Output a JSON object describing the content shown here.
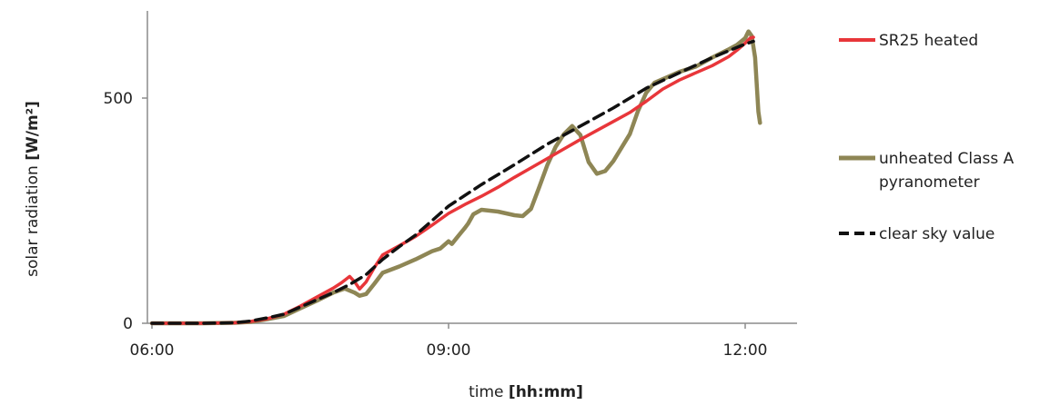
{
  "chart_data": {
    "type": "line",
    "xlabel": "time",
    "xlabel_unit": "[hh:mm]",
    "ylabel": "solar radiation",
    "ylabel_unit": "[W/m²]",
    "x_ticks": [
      "06:00",
      "09:00",
      "12:00"
    ],
    "y_ticks": [
      0,
      500
    ],
    "xlim": [
      "06:00",
      "12:35"
    ],
    "ylim": [
      0,
      700
    ],
    "grid": false,
    "legend_position": "right",
    "series": [
      {
        "name": "SR25 heated",
        "color": "#e8363a",
        "dash": "solid",
        "points": [
          [
            "06:00",
            0
          ],
          [
            "06:30",
            0
          ],
          [
            "06:50",
            1
          ],
          [
            "07:00",
            4
          ],
          [
            "07:10",
            10
          ],
          [
            "07:20",
            20
          ],
          [
            "07:30",
            38
          ],
          [
            "07:40",
            58
          ],
          [
            "07:50",
            78
          ],
          [
            "07:55",
            90
          ],
          [
            "08:00",
            104
          ],
          [
            "08:03",
            92
          ],
          [
            "08:06",
            76
          ],
          [
            "08:10",
            92
          ],
          [
            "08:15",
            124
          ],
          [
            "08:20",
            152
          ],
          [
            "08:30",
            172
          ],
          [
            "08:40",
            193
          ],
          [
            "08:50",
            218
          ],
          [
            "09:00",
            244
          ],
          [
            "09:10",
            264
          ],
          [
            "09:20",
            282
          ],
          [
            "09:30",
            302
          ],
          [
            "09:40",
            324
          ],
          [
            "09:50",
            345
          ],
          [
            "10:00",
            366
          ],
          [
            "10:10",
            387
          ],
          [
            "10:20",
            408
          ],
          [
            "10:30",
            428
          ],
          [
            "10:40",
            448
          ],
          [
            "10:50",
            468
          ],
          [
            "11:00",
            493
          ],
          [
            "11:10",
            520
          ],
          [
            "11:20",
            540
          ],
          [
            "11:30",
            556
          ],
          [
            "11:40",
            572
          ],
          [
            "11:50",
            592
          ],
          [
            "11:55",
            606
          ],
          [
            "12:00",
            622
          ],
          [
            "12:03",
            633
          ],
          [
            "12:05",
            635
          ]
        ]
      },
      {
        "name": "unheated Class A pyranometer",
        "color": "#8e8655",
        "dash": "solid",
        "points": [
          [
            "06:00",
            0
          ],
          [
            "06:30",
            0
          ],
          [
            "06:50",
            1
          ],
          [
            "07:00",
            3
          ],
          [
            "07:10",
            9
          ],
          [
            "07:20",
            16
          ],
          [
            "07:30",
            33
          ],
          [
            "07:40",
            50
          ],
          [
            "07:50",
            68
          ],
          [
            "07:57",
            77
          ],
          [
            "08:03",
            68
          ],
          [
            "08:06",
            61
          ],
          [
            "08:10",
            65
          ],
          [
            "08:15",
            88
          ],
          [
            "08:20",
            112
          ],
          [
            "08:30",
            126
          ],
          [
            "08:40",
            142
          ],
          [
            "08:50",
            160
          ],
          [
            "08:55",
            166
          ],
          [
            "09:00",
            182
          ],
          [
            "09:02",
            176
          ],
          [
            "09:05",
            190
          ],
          [
            "09:10",
            212
          ],
          [
            "09:12",
            222
          ],
          [
            "09:15",
            242
          ],
          [
            "09:20",
            252
          ],
          [
            "09:30",
            248
          ],
          [
            "09:40",
            240
          ],
          [
            "09:45",
            238
          ],
          [
            "09:50",
            254
          ],
          [
            "09:55",
            302
          ],
          [
            "10:00",
            352
          ],
          [
            "10:05",
            392
          ],
          [
            "10:10",
            420
          ],
          [
            "10:15",
            438
          ],
          [
            "10:20",
            418
          ],
          [
            "10:25",
            358
          ],
          [
            "10:30",
            332
          ],
          [
            "10:35",
            338
          ],
          [
            "10:40",
            360
          ],
          [
            "10:50",
            420
          ],
          [
            "10:55",
            472
          ],
          [
            "11:00",
            512
          ],
          [
            "11:05",
            534
          ],
          [
            "11:10",
            542
          ],
          [
            "11:20",
            558
          ],
          [
            "11:30",
            570
          ],
          [
            "11:40",
            590
          ],
          [
            "11:50",
            608
          ],
          [
            "11:55",
            618
          ],
          [
            "12:00",
            633
          ],
          [
            "12:02",
            648
          ],
          [
            "12:04",
            638
          ],
          [
            "12:06",
            590
          ],
          [
            "12:08",
            470
          ],
          [
            "12:09",
            445
          ]
        ]
      },
      {
        "name": "clear sky value",
        "color": "#111111",
        "dash": "dashed",
        "points": [
          [
            "06:00",
            0
          ],
          [
            "06:30",
            0
          ],
          [
            "06:50",
            1
          ],
          [
            "07:00",
            5
          ],
          [
            "07:10",
            12
          ],
          [
            "07:20",
            20
          ],
          [
            "07:30",
            36
          ],
          [
            "07:40",
            52
          ],
          [
            "07:50",
            68
          ],
          [
            "08:00",
            86
          ],
          [
            "08:10",
            108
          ],
          [
            "08:20",
            142
          ],
          [
            "08:30",
            170
          ],
          [
            "08:40",
            196
          ],
          [
            "08:50",
            228
          ],
          [
            "09:00",
            260
          ],
          [
            "09:20",
            308
          ],
          [
            "09:40",
            352
          ],
          [
            "10:00",
            398
          ],
          [
            "10:20",
            438
          ],
          [
            "10:40",
            478
          ],
          [
            "11:00",
            522
          ],
          [
            "11:20",
            556
          ],
          [
            "11:40",
            590
          ],
          [
            "12:00",
            620
          ],
          [
            "12:05",
            626
          ]
        ]
      }
    ]
  }
}
